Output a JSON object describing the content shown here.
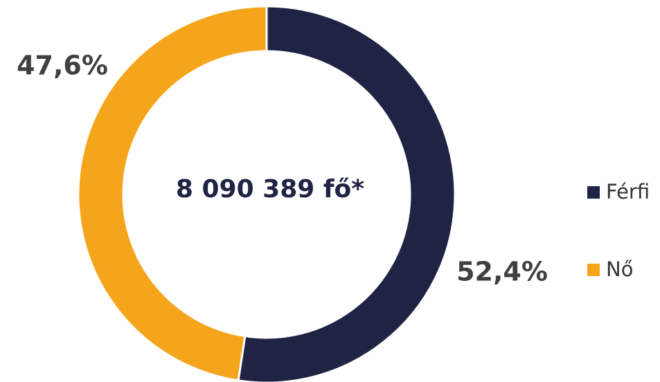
{
  "chart_data": {
    "type": "pie",
    "donut": true,
    "categories": [
      "Férfi",
      "Nő"
    ],
    "values": [
      52.4,
      47.6
    ],
    "value_labels": [
      "52,4%",
      "47,6%"
    ],
    "colors": [
      "#1f2444",
      "#f5a51c"
    ],
    "center_label": "8 090 389 fő*",
    "legend": "right"
  }
}
